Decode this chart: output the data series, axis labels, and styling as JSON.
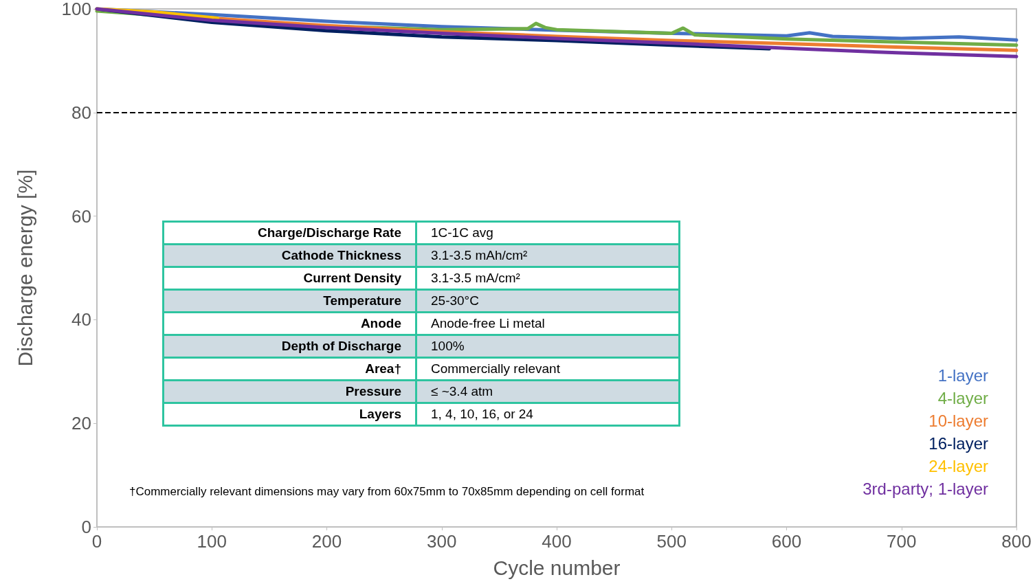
{
  "chart_data": {
    "type": "line",
    "xlabel": "Cycle number",
    "ylabel": "Discharge energy [%]",
    "xlim": [
      0,
      800
    ],
    "xticks": [
      0,
      100,
      200,
      300,
      400,
      500,
      600,
      700,
      800
    ],
    "ylim": [
      0,
      100
    ],
    "yticks": [
      0,
      20,
      40,
      60,
      80,
      100
    ],
    "grid": false,
    "legend": "bottom right",
    "marker": "none",
    "line_style": "solid",
    "ref_lines": [
      {
        "axis": "y",
        "value": 80,
        "color": "#000000",
        "line_style": "dashed"
      }
    ],
    "series": [
      {
        "name": "1-layer",
        "color": "#4472c4",
        "x": [
          0,
          100,
          200,
          300,
          400,
          500,
          600,
          620,
          640,
          700,
          750,
          800
        ],
        "values": [
          100.0,
          98.9,
          97.6,
          96.6,
          95.9,
          95.3,
          94.8,
          95.4,
          94.7,
          94.3,
          94.6,
          94.0
        ]
      },
      {
        "name": "4-layer",
        "color": "#70ad47",
        "x": [
          0,
          50,
          100,
          200,
          300,
          375,
          382,
          390,
          400,
          500,
          510,
          520,
          600,
          700,
          800
        ],
        "values": [
          99.6,
          98.8,
          97.6,
          96.7,
          96.0,
          96.2,
          97.2,
          96.4,
          96.0,
          95.3,
          96.3,
          95.0,
          94.2,
          93.6,
          93.0
        ]
      },
      {
        "name": "10-layer",
        "color": "#ed7d31",
        "x": [
          0,
          100,
          200,
          300,
          400,
          500,
          600,
          700,
          800
        ],
        "values": [
          100.0,
          98.2,
          96.8,
          95.6,
          94.7,
          93.9,
          93.3,
          92.6,
          92.0
        ]
      },
      {
        "name": "16-layer",
        "color": "#002060",
        "x": [
          0,
          100,
          200,
          300,
          400,
          500,
          585
        ],
        "values": [
          100.0,
          97.4,
          95.8,
          94.6,
          93.9,
          93.0,
          92.3
        ]
      },
      {
        "name": "24-layer",
        "color": "#ffc000",
        "x": [
          0,
          50,
          105
        ],
        "values": [
          100.0,
          99.4,
          98.2
        ]
      },
      {
        "name": "3rd-party; 1-layer",
        "color": "#7030a0",
        "x": [
          0,
          100,
          200,
          300,
          400,
          500,
          600,
          700,
          800
        ],
        "values": [
          100.0,
          97.8,
          96.4,
          95.3,
          94.3,
          93.4,
          92.4,
          91.5,
          90.8
        ]
      }
    ],
    "annotations": [
      "Charge/Discharge Rate",
      "1C-1C avg",
      "Cathode Thickness",
      "3.1-3.5 mAh/cm²",
      "Current Density",
      "3.1-3.5 mA/cm²",
      "Temperature",
      "25-30°C",
      "Anode",
      "Anode-free Li metal",
      "Depth of Discharge",
      "100%",
      "Area†",
      "Commercially relevant",
      "Pressure",
      "≤ ~3.4 atm",
      "Layers",
      "1, 4, 10, 16, or 24",
      "†Commercially relevant dimensions may vary from 60x75mm to 70x85mm depending on cell format"
    ]
  }
}
